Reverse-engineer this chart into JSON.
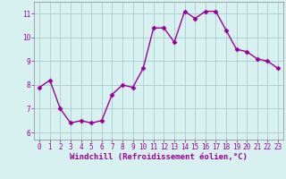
{
  "x": [
    0,
    1,
    2,
    3,
    4,
    5,
    6,
    7,
    8,
    9,
    10,
    11,
    12,
    13,
    14,
    15,
    16,
    17,
    18,
    19,
    20,
    21,
    22,
    23
  ],
  "y": [
    7.9,
    8.2,
    7.0,
    6.4,
    6.5,
    6.4,
    6.5,
    7.6,
    8.0,
    7.9,
    8.7,
    10.4,
    10.4,
    9.8,
    11.1,
    10.8,
    11.1,
    11.1,
    10.3,
    9.5,
    9.4,
    9.1,
    9.0,
    8.7
  ],
  "line_color": "#990099",
  "marker": "D",
  "markersize": 2.5,
  "bg_color": "#d7f0f0",
  "grid_color": "#aacccc",
  "xlabel": "Windchill (Refroidissement éolien,°C)",
  "ylabel": "",
  "ylim": [
    5.7,
    11.5
  ],
  "xlim": [
    -0.5,
    23.5
  ],
  "yticks": [
    6,
    7,
    8,
    9,
    10,
    11
  ],
  "xticks": [
    0,
    1,
    2,
    3,
    4,
    5,
    6,
    7,
    8,
    9,
    10,
    11,
    12,
    13,
    14,
    15,
    16,
    17,
    18,
    19,
    20,
    21,
    22,
    23
  ],
  "tick_label_fontsize": 5.5,
  "xlabel_fontsize": 6.5,
  "axis_color": "#888888",
  "linewidth": 1.0
}
